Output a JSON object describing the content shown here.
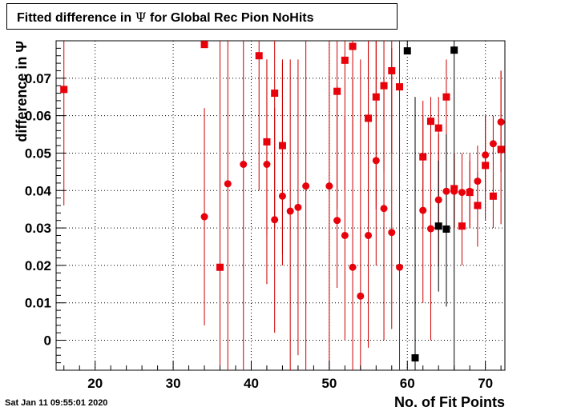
{
  "title": {
    "prefix": "Fitted difference in ",
    "symbol": "Ψ",
    "suffix": " for Global Rec Pion NoHits"
  },
  "footer": {
    "date": "Sat Jan 11 09:55:01 2020"
  },
  "chart_data": {
    "type": "scatter",
    "xlabel": "No. of Fit Points",
    "ylabel": "difference in Ψ",
    "xlim": [
      15,
      72.5
    ],
    "ylim": [
      -0.008,
      0.08
    ],
    "xticks": [
      20,
      30,
      40,
      50,
      60,
      70
    ],
    "yticks": [
      0,
      0.01,
      0.02,
      0.03,
      0.04,
      0.05,
      0.06,
      0.07
    ],
    "ytick_labels": [
      "0",
      "0.01",
      "0.02",
      "0.03",
      "0.04",
      "0.05",
      "0.06",
      "0.07"
    ],
    "grid": true,
    "colors": {
      "series_a": "#e8000b",
      "series_b": "#e8000b",
      "series_c": "#000000",
      "errorbar": "#cc0000"
    },
    "series": [
      {
        "marker": "square",
        "color": "#e8000b",
        "points": [
          {
            "x": 16,
            "y": 0.067,
            "ylo": 0.036,
            "yhi": 0.08
          },
          {
            "x": 34,
            "y": 0.079,
            "ylo": 0.079,
            "yhi": 0.08
          },
          {
            "x": 36,
            "y": 0.0195,
            "ylo": -0.008,
            "yhi": 0.08
          },
          {
            "x": 41,
            "y": 0.076,
            "ylo": 0.04,
            "yhi": 0.08
          },
          {
            "x": 42,
            "y": 0.053,
            "ylo": 0.028,
            "yhi": 0.075
          },
          {
            "x": 43,
            "y": 0.066,
            "ylo": 0.03,
            "yhi": 0.08
          },
          {
            "x": 44,
            "y": 0.052,
            "ylo": 0.023,
            "yhi": 0.075
          },
          {
            "x": 51,
            "y": 0.0665,
            "ylo": 0.035,
            "yhi": 0.08
          },
          {
            "x": 52,
            "y": 0.0748,
            "ylo": 0.04,
            "yhi": 0.08
          },
          {
            "x": 53,
            "y": 0.0785,
            "ylo": 0.05,
            "yhi": 0.08
          },
          {
            "x": 55,
            "y": 0.0593,
            "ylo": 0.03,
            "yhi": 0.08
          },
          {
            "x": 56,
            "y": 0.065,
            "ylo": 0.035,
            "yhi": 0.08
          },
          {
            "x": 57,
            "y": 0.068,
            "ylo": 0.045,
            "yhi": 0.08
          },
          {
            "x": 58,
            "y": 0.072,
            "ylo": 0.05,
            "yhi": 0.08
          },
          {
            "x": 59,
            "y": 0.0677,
            "ylo": 0.045,
            "yhi": 0.08
          },
          {
            "x": 62,
            "y": 0.049,
            "ylo": 0.03,
            "yhi": 0.064
          },
          {
            "x": 63,
            "y": 0.0585,
            "ylo": 0.04,
            "yhi": 0.065
          },
          {
            "x": 64,
            "y": 0.0567,
            "ylo": 0.03,
            "yhi": 0.065
          },
          {
            "x": 65,
            "y": 0.065,
            "ylo": 0.05,
            "yhi": 0.075
          },
          {
            "x": 66,
            "y": 0.0405,
            "ylo": 0.03,
            "yhi": 0.05
          },
          {
            "x": 67,
            "y": 0.0305,
            "ylo": 0.02,
            "yhi": 0.04
          },
          {
            "x": 68,
            "y": 0.0395,
            "ylo": 0.03,
            "yhi": 0.048
          },
          {
            "x": 69,
            "y": 0.036,
            "ylo": 0.025,
            "yhi": 0.045
          },
          {
            "x": 70,
            "y": 0.0467,
            "ylo": 0.032,
            "yhi": 0.06
          },
          {
            "x": 71,
            "y": 0.0385,
            "ylo": 0.03,
            "yhi": 0.045
          },
          {
            "x": 72,
            "y": 0.051,
            "ylo": 0.031,
            "yhi": 0.072
          }
        ]
      },
      {
        "marker": "circle",
        "color": "#e8000b",
        "points": [
          {
            "x": 34,
            "y": 0.033,
            "ylo": 0.004,
            "yhi": 0.062
          },
          {
            "x": 37,
            "y": 0.0418,
            "ylo": -0.008,
            "yhi": 0.08
          },
          {
            "x": 39,
            "y": 0.047,
            "ylo": -0.008,
            "yhi": 0.08
          },
          {
            "x": 42,
            "y": 0.047,
            "ylo": 0.015,
            "yhi": 0.075
          },
          {
            "x": 43,
            "y": 0.0322,
            "ylo": 0.002,
            "yhi": 0.062
          },
          {
            "x": 44,
            "y": 0.0385,
            "ylo": 0.02,
            "yhi": 0.074
          },
          {
            "x": 45,
            "y": 0.0345,
            "ylo": -0.008,
            "yhi": 0.075
          },
          {
            "x": 46,
            "y": 0.0355,
            "ylo": -0.004,
            "yhi": 0.075
          },
          {
            "x": 47,
            "y": 0.0412,
            "ylo": -0.008,
            "yhi": 0.08
          },
          {
            "x": 50,
            "y": 0.0412,
            "ylo": -0.008,
            "yhi": 0.08
          },
          {
            "x": 51,
            "y": 0.032,
            "ylo": 0.014,
            "yhi": 0.068
          },
          {
            "x": 52,
            "y": 0.028,
            "ylo": 0.0,
            "yhi": 0.06
          },
          {
            "x": 53,
            "y": 0.0195,
            "ylo": -0.008,
            "yhi": 0.07
          },
          {
            "x": 54,
            "y": 0.0118,
            "ylo": -0.008,
            "yhi": 0.075
          },
          {
            "x": 55,
            "y": 0.028,
            "ylo": -0.002,
            "yhi": 0.08
          },
          {
            "x": 56,
            "y": 0.048,
            "ylo": 0.02,
            "yhi": 0.08
          },
          {
            "x": 57,
            "y": 0.0352,
            "ylo": 0.0,
            "yhi": 0.07
          },
          {
            "x": 58,
            "y": 0.0288,
            "ylo": 0.003,
            "yhi": 0.078
          },
          {
            "x": 59,
            "y": 0.0195,
            "ylo": -0.008,
            "yhi": 0.055
          },
          {
            "x": 62,
            "y": 0.0347,
            "ylo": 0.01,
            "yhi": 0.06
          },
          {
            "x": 63,
            "y": 0.0298,
            "ylo": 0.0,
            "yhi": 0.055
          },
          {
            "x": 64,
            "y": 0.0375,
            "ylo": 0.02,
            "yhi": 0.055
          },
          {
            "x": 65,
            "y": 0.0398,
            "ylo": 0.03,
            "yhi": 0.05
          },
          {
            "x": 66,
            "y": 0.0398,
            "ylo": 0.03,
            "yhi": 0.05
          },
          {
            "x": 67,
            "y": 0.0395,
            "ylo": 0.03,
            "yhi": 0.05
          },
          {
            "x": 68,
            "y": 0.0398,
            "ylo": 0.03,
            "yhi": 0.05
          },
          {
            "x": 69,
            "y": 0.0425,
            "ylo": 0.035,
            "yhi": 0.052
          },
          {
            "x": 70,
            "y": 0.0495,
            "ylo": 0.04,
            "yhi": 0.06
          },
          {
            "x": 71,
            "y": 0.0525,
            "ylo": 0.045,
            "yhi": 0.06
          },
          {
            "x": 72,
            "y": 0.0583,
            "ylo": 0.045,
            "yhi": 0.072
          }
        ]
      },
      {
        "marker": "square",
        "color": "#000000",
        "points": [
          {
            "x": 60,
            "y": 0.0773,
            "ylo": 0.077,
            "yhi": 0.08
          },
          {
            "x": 61,
            "y": -0.0047,
            "ylo": -0.008,
            "yhi": 0.065
          },
          {
            "x": 64,
            "y": 0.0305,
            "ylo": 0.013,
            "yhi": 0.048
          },
          {
            "x": 65,
            "y": 0.0297,
            "ylo": 0.009,
            "yhi": 0.055
          },
          {
            "x": 66,
            "y": 0.0775,
            "ylo": -0.008,
            "yhi": 0.08
          }
        ]
      }
    ]
  }
}
